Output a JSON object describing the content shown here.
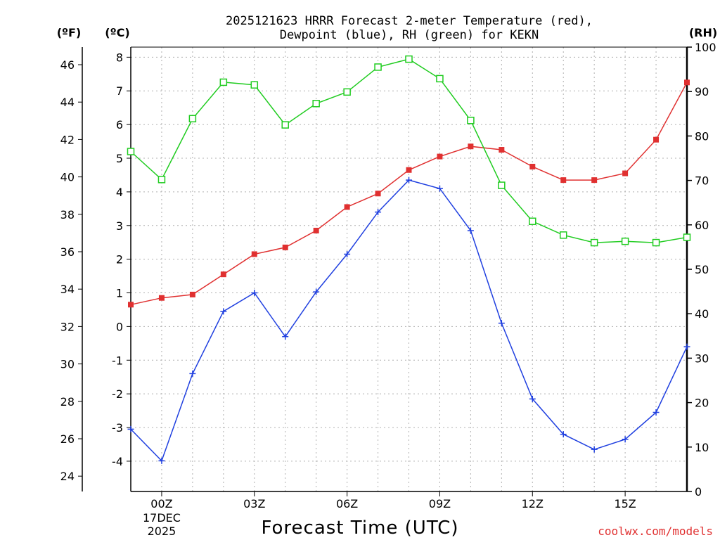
{
  "chart_data": {
    "type": "line",
    "title": "2025121623 HRRR Forecast 2-meter Temperature (red),",
    "subtitle": "Dewpoint (blue), RH (green) for KEKN",
    "xlabel": "Forecast Time (UTC)",
    "credit": "coolwx.com/models",
    "x_hours": [
      -1,
      0,
      1,
      2,
      3,
      4,
      5,
      6,
      7,
      8,
      9,
      10,
      11,
      12,
      13,
      14,
      15,
      16,
      17
    ],
    "xlim": [
      -1,
      17
    ],
    "x_ticks": [
      {
        "hour": 0,
        "label": "00Z",
        "sub1": "17DEC",
        "sub2": "2025"
      },
      {
        "hour": 3,
        "label": "03Z"
      },
      {
        "hour": 6,
        "label": "06Z"
      },
      {
        "hour": 9,
        "label": "09Z"
      },
      {
        "hour": 12,
        "label": "12Z"
      },
      {
        "hour": 15,
        "label": "15Z"
      }
    ],
    "left_axis_c": {
      "label": "(ºC)",
      "ylim": [
        -4.9,
        8.3
      ],
      "ticks": [
        "-4",
        "-3",
        "-2",
        "-1",
        "0",
        "1",
        "2",
        "3",
        "4",
        "5",
        "6",
        "7",
        "8"
      ]
    },
    "left_axis_f": {
      "label": "(ºF)",
      "ylim": [
        23.18,
        46.94
      ],
      "ticks": [
        "24",
        "26",
        "28",
        "30",
        "32",
        "34",
        "36",
        "38",
        "40",
        "42",
        "44",
        "46"
      ]
    },
    "right_axis_rh": {
      "label": "(RH)",
      "ylim": [
        0,
        100
      ],
      "ticks": [
        "0",
        "10",
        "20",
        "30",
        "40",
        "50",
        "60",
        "70",
        "80",
        "90",
        "100"
      ]
    },
    "series": [
      {
        "name": "2-meter Temperature",
        "axis": "C",
        "color": "#e03030",
        "marker": "filled-square",
        "values": [
          0.65,
          0.85,
          0.95,
          1.55,
          2.15,
          2.35,
          2.85,
          3.55,
          3.95,
          4.65,
          5.05,
          5.35,
          5.25,
          4.75,
          4.35,
          4.35,
          4.55,
          5.55,
          7.25
        ]
      },
      {
        "name": "Dewpoint",
        "axis": "C",
        "color": "#2040e0",
        "marker": "plus",
        "values": [
          -3.05,
          -3.99,
          -1.4,
          0.45,
          1.0,
          -0.3,
          1.03,
          2.15,
          3.4,
          4.35,
          4.1,
          2.85,
          0.1,
          -2.15,
          -3.2,
          -3.65,
          -3.35,
          -2.55,
          -0.6
        ]
      },
      {
        "name": "RH",
        "axis": "RH",
        "color": "#20cc20",
        "marker": "open-square",
        "values": [
          76.5,
          70.2,
          83.9,
          92.1,
          91.5,
          82.5,
          87.3,
          89.9,
          95.5,
          97.3,
          92.9,
          83.5,
          68.9,
          60.8,
          57.7,
          56.0,
          56.3,
          56.0,
          57.2
        ]
      }
    ]
  }
}
